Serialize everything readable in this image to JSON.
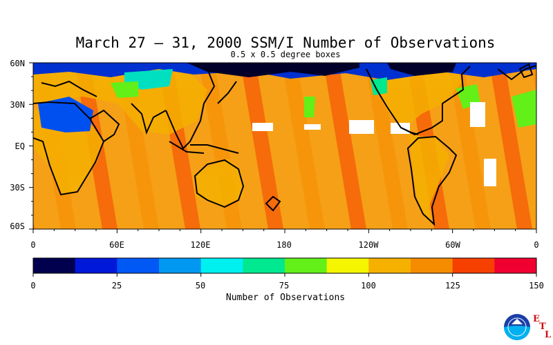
{
  "title": "March 27 – 31, 2000 SSM/I Number of Observations",
  "subtitle": "0.5 x 0.5 degree boxes",
  "map": {
    "lat_labels": [
      "60N",
      "30N",
      "EQ",
      "30S",
      "60S"
    ],
    "lon_labels": [
      "0",
      "60E",
      "120E",
      "180",
      "120W",
      "60W",
      "0"
    ],
    "lat_range": [
      -60,
      60
    ],
    "lon_range": [
      0,
      360
    ],
    "background_color": "#f5a017",
    "coastline_color": "#000000"
  },
  "colorbar": {
    "title": "Number of Observations",
    "tick_labels": [
      "0",
      "25",
      "50",
      "75",
      "100",
      "125",
      "150"
    ],
    "range": [
      0,
      150
    ],
    "colors": [
      "#00004e",
      "#0018d8",
      "#0058f5",
      "#0098f0",
      "#00f0f0",
      "#00e890",
      "#62f018",
      "#f5f500",
      "#f5b000",
      "#f58c00",
      "#f54000",
      "#f00030"
    ]
  },
  "logo": {
    "agency": "NOAA",
    "letters": [
      "E",
      "T",
      "L"
    ]
  }
}
